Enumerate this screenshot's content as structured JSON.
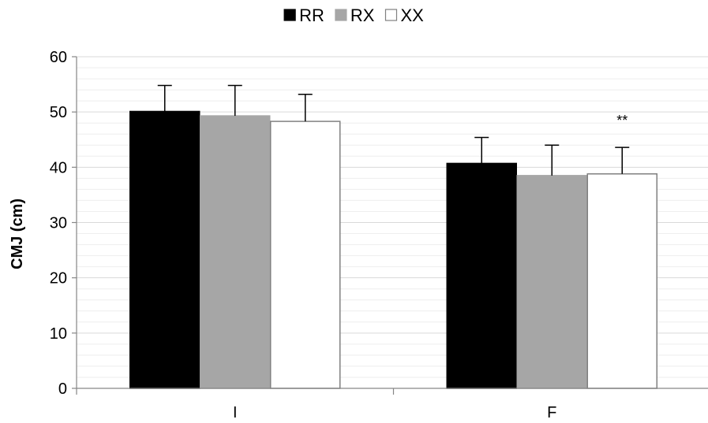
{
  "chart_data": {
    "type": "bar",
    "categories": [
      "I",
      "F"
    ],
    "series": [
      {
        "name": "RR",
        "values": [
          50.1,
          40.7
        ],
        "errors": [
          4.7,
          4.7
        ],
        "color": "#000000",
        "stroke": "#000000"
      },
      {
        "name": "RX",
        "values": [
          49.3,
          38.5
        ],
        "errors": [
          5.5,
          5.5
        ],
        "color": "#a6a6a6",
        "stroke": "#a6a6a6"
      },
      {
        "name": "XX",
        "values": [
          48.3,
          38.8
        ],
        "errors": [
          4.9,
          4.8
        ],
        "color": "#ffffff",
        "stroke": "#808080"
      }
    ],
    "xlabel": "",
    "ylabel": "CMJ (cm)",
    "ylim": [
      0,
      60
    ],
    "yticks": [
      0,
      10,
      20,
      30,
      40,
      50,
      60
    ],
    "grid": true,
    "legend_position": "top-center",
    "annotations": [
      {
        "text": "**",
        "category": "F",
        "series": "XX"
      }
    ],
    "colors": {
      "major_grid": "#d9d9d9",
      "minor_grid": "#eeeeee",
      "axis": "#868686",
      "error_bar": "#000000"
    }
  }
}
